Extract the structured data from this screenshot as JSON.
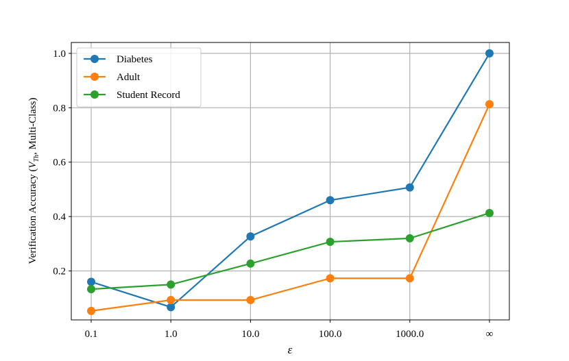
{
  "chart_data": {
    "type": "line",
    "categories": [
      "0.1",
      "1.0",
      "10.0",
      "100.0",
      "1000.0",
      "∞"
    ],
    "xlabel": "ε",
    "ylabel": {
      "prefix": "Verification Accuracy (",
      "var": "V",
      "sub": "Th",
      "suffix": ", Multi-Class)"
    },
    "ylim": [
      0.02,
      1.04
    ],
    "yticks": [
      "0.2",
      "0.4",
      "0.6",
      "0.8",
      "1.0"
    ],
    "ytick_values": [
      0.2,
      0.4,
      0.6,
      0.8,
      1.0
    ],
    "grid": true,
    "legend_position": "upper-left",
    "series": [
      {
        "name": "Diabetes",
        "color": "#1f77b4",
        "values": [
          0.16,
          0.067,
          0.327,
          0.46,
          0.507,
          1.0
        ]
      },
      {
        "name": "Adult",
        "color": "#ff7f0e",
        "values": [
          0.053,
          0.093,
          0.093,
          0.173,
          0.173,
          0.813
        ]
      },
      {
        "name": "Student Record",
        "color": "#2ca02c",
        "values": [
          0.133,
          0.15,
          0.227,
          0.307,
          0.32,
          0.413
        ]
      }
    ]
  }
}
